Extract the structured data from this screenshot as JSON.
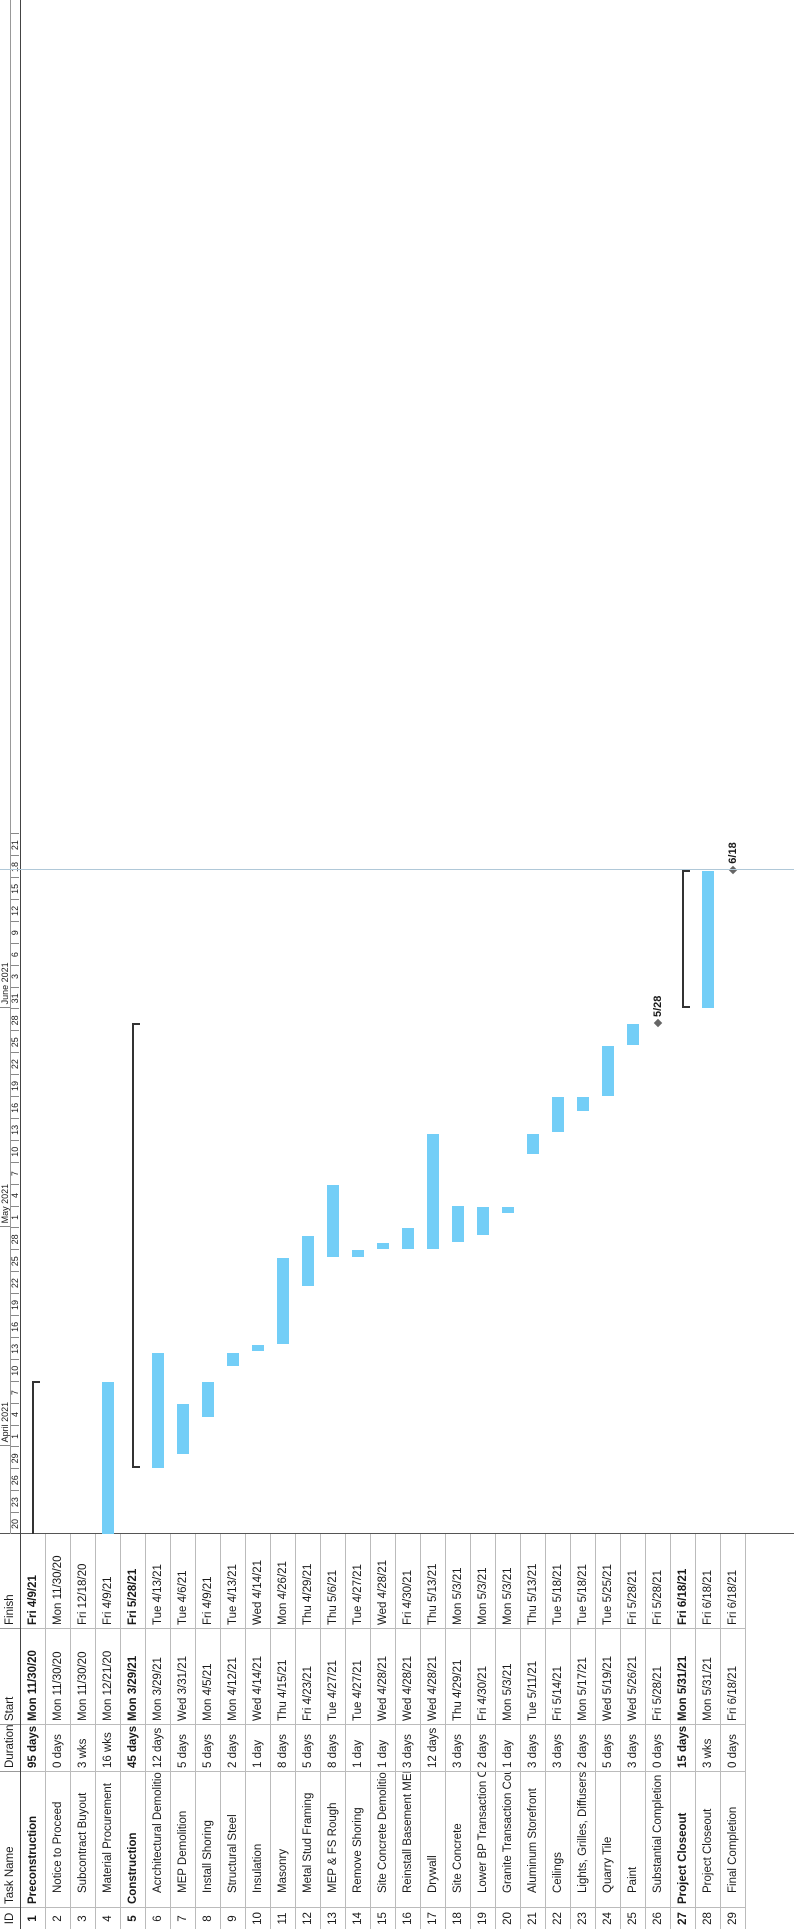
{
  "headers": {
    "id": "ID",
    "name": "Task Name",
    "duration": "Duration",
    "start": "Start",
    "finish": "Finish"
  },
  "tasks": [
    {
      "id": "1",
      "name": "Preconstruction",
      "duration": "95 days",
      "start": "Mon 11/30/20",
      "finish": "Fri 4/9/21",
      "summary": true
    },
    {
      "id": "2",
      "name": "Notice to Proceed",
      "duration": "0 days",
      "start": "Mon 11/30/20",
      "finish": "Mon 11/30/20"
    },
    {
      "id": "3",
      "name": "Subcontract Buyout",
      "duration": "3 wks",
      "start": "Mon 11/30/20",
      "finish": "Fri 12/18/20"
    },
    {
      "id": "4",
      "name": "Material Procurement",
      "duration": "16 wks",
      "start": "Mon 12/21/20",
      "finish": "Fri 4/9/21"
    },
    {
      "id": "5",
      "name": "Construction",
      "duration": "45 days",
      "start": "Mon 3/29/21",
      "finish": "Fri 5/28/21",
      "summary": true
    },
    {
      "id": "6",
      "name": "Acrchitectural Demolition",
      "duration": "12 days",
      "start": "Mon 3/29/21",
      "finish": "Tue 4/13/21"
    },
    {
      "id": "7",
      "name": "MEP Demolition",
      "duration": "5 days",
      "start": "Wed 3/31/21",
      "finish": "Tue 4/6/21"
    },
    {
      "id": "8",
      "name": "Install Shoring",
      "duration": "5 days",
      "start": "Mon 4/5/21",
      "finish": "Fri 4/9/21"
    },
    {
      "id": "9",
      "name": "Structural Steel",
      "duration": "2 days",
      "start": "Mon 4/12/21",
      "finish": "Tue 4/13/21"
    },
    {
      "id": "10",
      "name": "Insulation",
      "duration": "1 day",
      "start": "Wed 4/14/21",
      "finish": "Wed 4/14/21"
    },
    {
      "id": "11",
      "name": "Masonry",
      "duration": "8 days",
      "start": "Thu 4/15/21",
      "finish": "Mon 4/26/21"
    },
    {
      "id": "12",
      "name": "Metal Stud Framing",
      "duration": "5 days",
      "start": "Fri 4/23/21",
      "finish": "Thu 4/29/21"
    },
    {
      "id": "13",
      "name": "MEP & FS Rough",
      "duration": "8 days",
      "start": "Tue 4/27/21",
      "finish": "Thu 5/6/21"
    },
    {
      "id": "14",
      "name": "Remove Shoring",
      "duration": "1 day",
      "start": "Tue 4/27/21",
      "finish": "Tue 4/27/21"
    },
    {
      "id": "15",
      "name": "Site Concrete Demolition",
      "duration": "1 day",
      "start": "Wed 4/28/21",
      "finish": "Wed 4/28/21"
    },
    {
      "id": "16",
      "name": "Reinstall Basement MEP",
      "duration": "3 days",
      "start": "Wed 4/28/21",
      "finish": "Fri 4/30/21"
    },
    {
      "id": "17",
      "name": "Drywall",
      "duration": "12 days",
      "start": "Wed 4/28/21",
      "finish": "Thu 5/13/21"
    },
    {
      "id": "18",
      "name": "Site Concrete",
      "duration": "3 days",
      "start": "Thu 4/29/21",
      "finish": "Mon 5/3/21"
    },
    {
      "id": "19",
      "name": "Lower BP Transaction Counter",
      "duration": "2 days",
      "start": "Fri 4/30/21",
      "finish": "Mon 5/3/21"
    },
    {
      "id": "20",
      "name": "Granite Transaction Counter",
      "duration": "1 day",
      "start": "Mon 5/3/21",
      "finish": "Mon 5/3/21"
    },
    {
      "id": "21",
      "name": "Aluminum Storefront",
      "duration": "3 days",
      "start": "Tue 5/11/21",
      "finish": "Thu 5/13/21"
    },
    {
      "id": "22",
      "name": "Ceilings",
      "duration": "3 days",
      "start": "Fri 5/14/21",
      "finish": "Tue 5/18/21"
    },
    {
      "id": "23",
      "name": "Lights, Grilles, Diffusers",
      "duration": "2 days",
      "start": "Mon 5/17/21",
      "finish": "Tue 5/18/21"
    },
    {
      "id": "24",
      "name": "Quarry Tile",
      "duration": "5 days",
      "start": "Wed 5/19/21",
      "finish": "Tue 5/25/21"
    },
    {
      "id": "25",
      "name": "Paint",
      "duration": "3 days",
      "start": "Wed 5/26/21",
      "finish": "Fri 5/28/21"
    },
    {
      "id": "26",
      "name": "Substantial Completion",
      "duration": "0 days",
      "start": "Fri 5/28/21",
      "finish": "Fri 5/28/21"
    },
    {
      "id": "27",
      "name": "Project Closeout",
      "duration": "15 days",
      "start": "Mon 5/31/21",
      "finish": "Fri 6/18/21",
      "summary": true
    },
    {
      "id": "28",
      "name": "Project Closeout",
      "duration": "3 wks",
      "start": "Mon 5/31/21",
      "finish": "Fri 6/18/21"
    },
    {
      "id": "29",
      "name": "Final Completion",
      "duration": "0 days",
      "start": "Fri 6/18/21",
      "finish": "Fri 6/18/21"
    }
  ],
  "timescale": {
    "months": [
      {
        "label": "April 2021",
        "date": "2021-04-01"
      },
      {
        "label": "May 2021",
        "date": "2021-05-01"
      },
      {
        "label": "June 2021",
        "date": "2021-05-31"
      }
    ],
    "days": [
      "20",
      "23",
      "26",
      "29",
      "1",
      "4",
      "7",
      "10",
      "13",
      "16",
      "19",
      "22",
      "25",
      "28",
      "1",
      "4",
      "7",
      "10",
      "13",
      "16",
      "19",
      "22",
      "25",
      "28",
      "31",
      "3",
      "6",
      "9",
      "12",
      "15",
      "18",
      "21"
    ]
  },
  "milestone_labels": {
    "26": "5/28",
    "29": "6/18"
  },
  "bar_color": "#73cef7",
  "summary_color": "#333333"
}
